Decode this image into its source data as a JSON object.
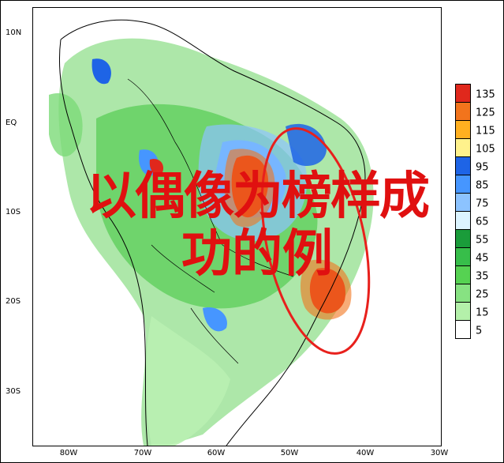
{
  "map": {
    "lat_labels": [
      "10N",
      "EQ",
      "10S",
      "20S",
      "30S"
    ],
    "lon_labels": [
      "80W",
      "70W",
      "60W",
      "50W",
      "40W",
      "30W"
    ]
  },
  "colorbar": {
    "levels": [
      "135",
      "125",
      "115",
      "105",
      "95",
      "85",
      "75",
      "65",
      "55",
      "45",
      "35",
      "25",
      "15",
      "5"
    ],
    "colors": [
      "#e0281c",
      "#f2741c",
      "#ffb020",
      "#fff28c",
      "#1e64e6",
      "#4696ff",
      "#8cc3ff",
      "#dcf4ff",
      "#1a9c3a",
      "#37be4a",
      "#56d252",
      "#87e282",
      "#b4f0aa",
      "#ffffff"
    ]
  },
  "overlay": {
    "line1": "以偶像为榜样成",
    "line2": "功的例"
  }
}
